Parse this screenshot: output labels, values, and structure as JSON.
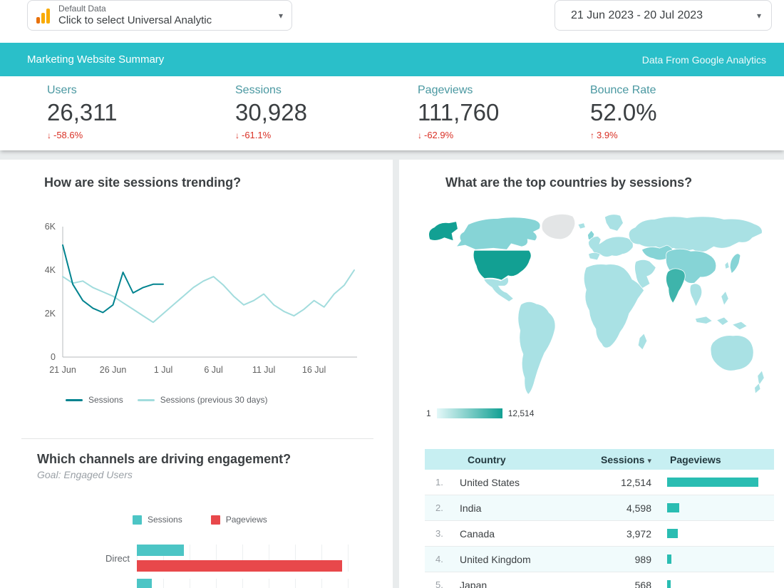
{
  "theme": {
    "teal-band": "#2abfc9",
    "series-dark": "#00838f",
    "series-light": "#a2dcdd",
    "bar-teal": "#4cc5c5",
    "bar-red": "#e8484b",
    "table-bar-teal": "#2abdb2",
    "map-max": "#12a093",
    "map-high": "#3eb4ab",
    "map-med": "#86d4d6",
    "map-low": "#a9e1e4",
    "map-nodata": "#e3e5e6",
    "delta-red": "#d93025",
    "scorecard-label": "#4a98a1",
    "text-dark": "#3c4043",
    "text-gray": "#5f6368",
    "table-header-bg": "#c7eff2",
    "table-row-alt-bg": "#f1fbfc",
    "border-gray": "#dadce0",
    "ga-orange": "#f9ab00",
    "ga-orange-dark": "#e8710a"
  },
  "topbar": {
    "data_control": {
      "label": "Default Data",
      "value": "Click to select Universal Analytic"
    },
    "date_control": {
      "value": "21 Jun 2023 - 20 Jul 2023"
    }
  },
  "header": {
    "title": "Marketing Website Summary",
    "subtitle": "Data From Google Analytics"
  },
  "scorecards": [
    {
      "label": "Users",
      "value": "26,311",
      "arrow": "↓",
      "delta": "-58.6%"
    },
    {
      "label": "Sessions",
      "value": "30,928",
      "arrow": "↓",
      "delta": "-61.1%"
    },
    {
      "label": "Pageviews",
      "value": "111,760",
      "arrow": "↓",
      "delta": "-62.9%"
    },
    {
      "label": "Bounce Rate",
      "value": "52.0%",
      "arrow": "↑",
      "delta": "3.9%"
    }
  ],
  "chart_data": [
    {
      "id": "sessions-trend",
      "type": "line",
      "title": "How are site sessions trending?",
      "x_ticks": [
        "21 Jun",
        "26 Jun",
        "1 Jul",
        "6 Jul",
        "11 Jul",
        "16 Jul"
      ],
      "x_tick_days": [
        0,
        5,
        10,
        15,
        20,
        25
      ],
      "x_days": 30,
      "y_ticks": [
        "0",
        "2K",
        "4K",
        "6K"
      ],
      "y_tick_values": [
        0,
        2000,
        4000,
        6000
      ],
      "ylim": [
        0,
        6000
      ],
      "grid": false,
      "legend_position": "bottom",
      "series": [
        {
          "name": "Sessions",
          "color": "#00838f",
          "values": [
            5150,
            3350,
            2600,
            2250,
            2050,
            2400,
            3900,
            2950,
            3200,
            3350,
            3350
          ]
        },
        {
          "name": "Sessions (previous 30 days)",
          "color": "#a2dcdd",
          "values": [
            3700,
            3400,
            3500,
            3200,
            3000,
            2800,
            2500,
            2200,
            1900,
            1600,
            2000,
            2400,
            2800,
            3200,
            3500,
            3700,
            3300,
            2800,
            2400,
            2600,
            2900,
            2400,
            2100,
            1900,
            2200,
            2600,
            2300,
            2900,
            3300,
            4000
          ]
        }
      ],
      "note": "values estimated from gridlines"
    },
    {
      "id": "channels-engagement",
      "type": "bar",
      "orientation": "horizontal",
      "title": "Which channels are driving engagement?",
      "subtitle": "Goal: Engaged Users",
      "categories": [
        "Direct",
        ""
      ],
      "series": [
        {
          "name": "Sessions",
          "color": "#4cc5c5",
          "values": [
            22,
            7
          ]
        },
        {
          "name": "Pageviews",
          "color": "#e8484b",
          "values": [
            96,
            0
          ]
        }
      ],
      "unit": "relative width % (axis labels not visible; second category cut off by viewport)"
    },
    {
      "id": "top-countries-map",
      "type": "heatmap",
      "title": "What are the top countries by sessions?",
      "metric": "Sessions",
      "scale": {
        "min_label": "1",
        "max_label": "12,514"
      },
      "values": {
        "United States": 12514,
        "India": 4598,
        "Canada": 3972,
        "United Kingdom": 989,
        "Japan": 568
      }
    },
    {
      "id": "top-countries-table",
      "type": "table",
      "columns": [
        "Country",
        "Sessions",
        "Pageviews"
      ],
      "sort": {
        "column": "Sessions",
        "direction": "desc"
      },
      "sort_icon": "▾",
      "rows": [
        {
          "rank": "1.",
          "country": "United States",
          "sessions": "12,514",
          "pageviews_bar_pct": 100
        },
        {
          "rank": "2.",
          "country": "India",
          "sessions": "4,598",
          "pageviews_bar_pct": 13
        },
        {
          "rank": "3.",
          "country": "Canada",
          "sessions": "3,972",
          "pageviews_bar_pct": 12
        },
        {
          "rank": "4.",
          "country": "United Kingdom",
          "sessions": "989",
          "pageviews_bar_pct": 5
        },
        {
          "rank": "5.",
          "country": "Japan",
          "sessions": "568",
          "pageviews_bar_pct": 4
        }
      ]
    }
  ]
}
